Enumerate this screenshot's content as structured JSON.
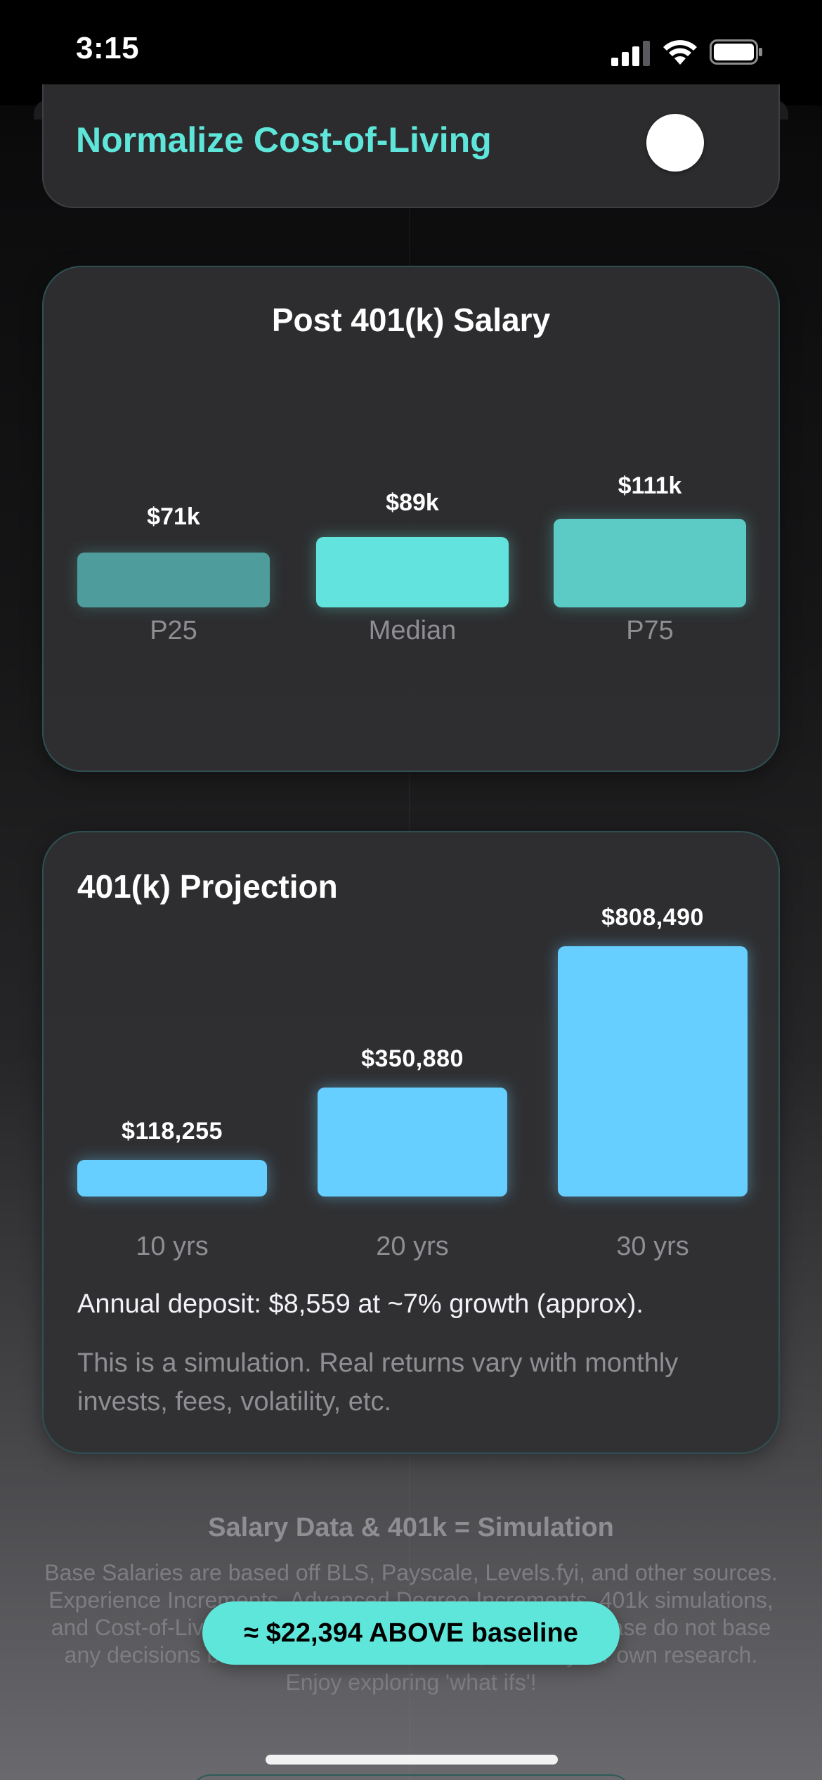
{
  "status_bar": {
    "time": "3:15",
    "icons": [
      "cellular-signal-icon",
      "wifi-icon",
      "battery-icon"
    ]
  },
  "toggle_card": {
    "label": "Normalize Cost-of-Living",
    "toggle_on": false
  },
  "salary_card": {
    "title": "Post 401(k) Salary",
    "bars": [
      {
        "label": "P25",
        "value_label": "$71k",
        "value": 71,
        "color": "#4e9c9c"
      },
      {
        "label": "Median",
        "value_label": "$89k",
        "value": 89,
        "color": "#63e3dd"
      },
      {
        "label": "P75",
        "value_label": "$111k",
        "value": 111,
        "color": "#5ccbc6"
      }
    ]
  },
  "projection_card": {
    "title": "401(k) Projection",
    "bars": [
      {
        "label": "10 yrs",
        "value_label": "$118,255",
        "value": 118255
      },
      {
        "label": "20 yrs",
        "value_label": "$350,880",
        "value": 350880
      },
      {
        "label": "30 yrs",
        "value_label": "$808,490",
        "value": 808490
      }
    ],
    "bar_color": "#66cfff",
    "deposit_text": "Annual deposit: $8,559 at ~7% growth (approx).",
    "note": "This is a simulation. Real returns vary with monthly invests, fees, volatility, etc."
  },
  "footer": {
    "title": "Salary Data & 401k = Simulation",
    "body": "Base Salaries are based off BLS, Payscale, Levels.fyi, and other sources. Experience Increments, Advanced Degree Increments, 401k simulations, and Cost-of-Living are all estimates and simulations. Please do not base any decisions based off these simulations, and do your own research. Enjoy exploring 'what ifs'!"
  },
  "baseline_pill": {
    "text": "≈ $22,394 ABOVE baseline"
  },
  "colors": {
    "accent_teal": "#5ee6da",
    "accent_blue": "#66cfff"
  }
}
